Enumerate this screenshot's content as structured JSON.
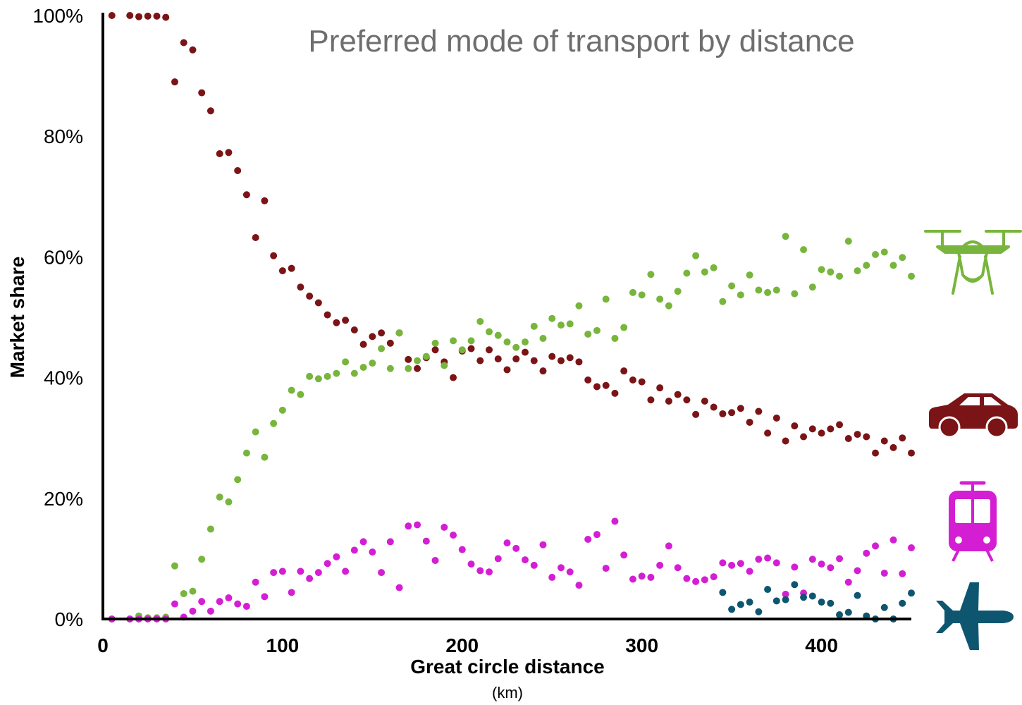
{
  "chart_data": {
    "type": "scatter",
    "title": "Preferred mode of transport by distance",
    "xlabel": "Great circle distance",
    "xlabel_unit": "(km)",
    "ylabel": "Market share",
    "xlim": [
      0,
      450
    ],
    "ylim": [
      0,
      100
    ],
    "x_ticks": [
      0,
      100,
      200,
      300,
      400
    ],
    "x_tick_labels": [
      "0",
      "100",
      "200",
      "300",
      "400"
    ],
    "y_ticks": [
      0,
      20,
      40,
      60,
      80,
      100
    ],
    "y_tick_labels": [
      "0%",
      "20%",
      "40%",
      "60%",
      "80%",
      "100%"
    ],
    "grid": false,
    "legend": "icons at right",
    "series": [
      {
        "icon": "car-icon",
        "color": "#7b1416",
        "points": [
          [
            5,
            100
          ],
          [
            15,
            100
          ],
          [
            20,
            99.8
          ],
          [
            25,
            99.9
          ],
          [
            30,
            99.9
          ],
          [
            35,
            99.7
          ],
          [
            40,
            89
          ],
          [
            45,
            95.5
          ],
          [
            50,
            94.3
          ],
          [
            55,
            87.2
          ],
          [
            60,
            84.2
          ],
          [
            65,
            77.1
          ],
          [
            70,
            77.3
          ],
          [
            75,
            74.3
          ],
          [
            80,
            70.3
          ],
          [
            85,
            63.2
          ],
          [
            90,
            69.3
          ],
          [
            95,
            60.2
          ],
          [
            100,
            57.7
          ],
          [
            105,
            58.1
          ],
          [
            110,
            55
          ],
          [
            115,
            53.5
          ],
          [
            120,
            52.4
          ],
          [
            125,
            50.4
          ],
          [
            130,
            49.1
          ],
          [
            135,
            49.5
          ],
          [
            140,
            47.9
          ],
          [
            145,
            45.5
          ],
          [
            150,
            46.8
          ],
          [
            155,
            47.4
          ],
          [
            160,
            45.7
          ],
          [
            165,
            47.4
          ],
          [
            170,
            43
          ],
          [
            175,
            41.5
          ],
          [
            180,
            43.3
          ],
          [
            185,
            44.6
          ],
          [
            190,
            42.6
          ],
          [
            195,
            40
          ],
          [
            200,
            44.4
          ],
          [
            205,
            44.8
          ],
          [
            210,
            42.8
          ],
          [
            215,
            44.6
          ],
          [
            220,
            43.1
          ],
          [
            225,
            41.3
          ],
          [
            230,
            43.1
          ],
          [
            235,
            44.2
          ],
          [
            240,
            42.8
          ],
          [
            245,
            41.1
          ],
          [
            250,
            43.5
          ],
          [
            255,
            42.8
          ],
          [
            260,
            43.3
          ],
          [
            265,
            42.6
          ],
          [
            270,
            39.6
          ],
          [
            275,
            38.5
          ],
          [
            280,
            38.7
          ],
          [
            285,
            37.4
          ],
          [
            290,
            41.1
          ],
          [
            295,
            39.6
          ],
          [
            300,
            39.3
          ],
          [
            305,
            36.3
          ],
          [
            310,
            38.3
          ],
          [
            315,
            36.1
          ],
          [
            320,
            37.2
          ],
          [
            325,
            36.3
          ],
          [
            330,
            33.9
          ],
          [
            335,
            36.1
          ],
          [
            340,
            35.1
          ],
          [
            345,
            34
          ],
          [
            350,
            34.2
          ],
          [
            355,
            34.9
          ],
          [
            360,
            32.6
          ],
          [
            365,
            34.4
          ],
          [
            370,
            30.8
          ],
          [
            375,
            33.3
          ],
          [
            380,
            29.5
          ],
          [
            385,
            32
          ],
          [
            390,
            30.2
          ],
          [
            395,
            31.5
          ],
          [
            400,
            30.8
          ],
          [
            405,
            31.5
          ],
          [
            410,
            32.2
          ],
          [
            415,
            29.9
          ],
          [
            420,
            30.6
          ],
          [
            425,
            30.2
          ],
          [
            430,
            27.5
          ],
          [
            435,
            29.5
          ],
          [
            440,
            28.4
          ],
          [
            445,
            30
          ],
          [
            450,
            27.5
          ]
        ]
      },
      {
        "icon": "drone-icon",
        "color": "#78b53c",
        "points": [
          [
            5,
            0
          ],
          [
            15,
            0
          ],
          [
            20,
            0.5
          ],
          [
            25,
            0.2
          ],
          [
            30,
            0.2
          ],
          [
            35,
            0.3
          ],
          [
            40,
            8.8
          ],
          [
            45,
            4.2
          ],
          [
            50,
            4.6
          ],
          [
            55,
            9.9
          ],
          [
            60,
            14.9
          ],
          [
            65,
            20.2
          ],
          [
            70,
            19.4
          ],
          [
            75,
            23.1
          ],
          [
            80,
            27.5
          ],
          [
            85,
            31
          ],
          [
            90,
            26.8
          ],
          [
            95,
            32.4
          ],
          [
            100,
            34.6
          ],
          [
            105,
            37.9
          ],
          [
            110,
            37.2
          ],
          [
            115,
            40.2
          ],
          [
            120,
            39.8
          ],
          [
            125,
            40.2
          ],
          [
            130,
            40.7
          ],
          [
            135,
            42.6
          ],
          [
            140,
            40.7
          ],
          [
            145,
            41.7
          ],
          [
            150,
            42.4
          ],
          [
            155,
            44.8
          ],
          [
            160,
            41.5
          ],
          [
            165,
            47.4
          ],
          [
            170,
            41.5
          ],
          [
            175,
            42.8
          ],
          [
            180,
            43.5
          ],
          [
            185,
            45.7
          ],
          [
            190,
            42
          ],
          [
            195,
            46.1
          ],
          [
            200,
            44.6
          ],
          [
            205,
            46.1
          ],
          [
            210,
            49.3
          ],
          [
            215,
            47.6
          ],
          [
            220,
            47
          ],
          [
            225,
            45.9
          ],
          [
            230,
            45
          ],
          [
            235,
            45.9
          ],
          [
            240,
            48.5
          ],
          [
            245,
            46.5
          ],
          [
            250,
            49.8
          ],
          [
            255,
            48.7
          ],
          [
            260,
            48.9
          ],
          [
            265,
            51.9
          ],
          [
            270,
            47.2
          ],
          [
            275,
            47.8
          ],
          [
            280,
            53
          ],
          [
            285,
            46.5
          ],
          [
            290,
            48.3
          ],
          [
            295,
            54.1
          ],
          [
            300,
            53.7
          ],
          [
            305,
            57.1
          ],
          [
            310,
            53
          ],
          [
            315,
            51.9
          ],
          [
            320,
            54.3
          ],
          [
            325,
            57.3
          ],
          [
            330,
            60.2
          ],
          [
            335,
            57.5
          ],
          [
            340,
            58.2
          ],
          [
            345,
            52.6
          ],
          [
            350,
            55.2
          ],
          [
            355,
            53.7
          ],
          [
            360,
            57
          ],
          [
            365,
            54.5
          ],
          [
            370,
            54.1
          ],
          [
            375,
            54.5
          ],
          [
            380,
            63.4
          ],
          [
            385,
            53.9
          ],
          [
            390,
            61.2
          ],
          [
            395,
            55
          ],
          [
            400,
            57.9
          ],
          [
            405,
            57.5
          ],
          [
            410,
            56.8
          ],
          [
            415,
            62.6
          ],
          [
            420,
            57.7
          ],
          [
            425,
            58.6
          ],
          [
            430,
            60.4
          ],
          [
            435,
            60.8
          ],
          [
            440,
            58.6
          ],
          [
            445,
            59.9
          ],
          [
            450,
            56.8
          ]
        ]
      },
      {
        "icon": "tram-icon",
        "color": "#d41ed4",
        "points": [
          [
            5,
            0
          ],
          [
            15,
            0
          ],
          [
            20,
            0
          ],
          [
            25,
            0
          ],
          [
            30,
            0
          ],
          [
            35,
            0
          ],
          [
            40,
            2.5
          ],
          [
            45,
            0.3
          ],
          [
            50,
            1.3
          ],
          [
            55,
            2.9
          ],
          [
            60,
            1.3
          ],
          [
            65,
            2.9
          ],
          [
            70,
            3.5
          ],
          [
            75,
            2.5
          ],
          [
            80,
            2.1
          ],
          [
            85,
            6.1
          ],
          [
            90,
            3.7
          ],
          [
            95,
            7.7
          ],
          [
            100,
            7.9
          ],
          [
            105,
            4.4
          ],
          [
            110,
            7.9
          ],
          [
            115,
            6.7
          ],
          [
            120,
            7.7
          ],
          [
            125,
            9.2
          ],
          [
            130,
            10.3
          ],
          [
            135,
            7.9
          ],
          [
            140,
            11.4
          ],
          [
            145,
            12.8
          ],
          [
            150,
            11.1
          ],
          [
            155,
            7.7
          ],
          [
            160,
            12.8
          ],
          [
            165,
            5.2
          ],
          [
            170,
            15.4
          ],
          [
            175,
            15.6
          ],
          [
            180,
            12.9
          ],
          [
            185,
            9.7
          ],
          [
            190,
            15.2
          ],
          [
            195,
            13.9
          ],
          [
            200,
            11.5
          ],
          [
            205,
            9.1
          ],
          [
            210,
            8
          ],
          [
            215,
            7.8
          ],
          [
            220,
            10
          ],
          [
            225,
            12.6
          ],
          [
            230,
            11.7
          ],
          [
            235,
            9.8
          ],
          [
            240,
            8.9
          ],
          [
            245,
            12.3
          ],
          [
            250,
            6.9
          ],
          [
            255,
            8.5
          ],
          [
            260,
            7.8
          ],
          [
            265,
            5.6
          ],
          [
            270,
            13.2
          ],
          [
            275,
            14
          ],
          [
            280,
            8.4
          ],
          [
            285,
            16.2
          ],
          [
            290,
            10.6
          ],
          [
            295,
            6.6
          ],
          [
            300,
            7.1
          ],
          [
            305,
            6.9
          ],
          [
            310,
            8.9
          ],
          [
            315,
            12.1
          ],
          [
            320,
            8.5
          ],
          [
            325,
            6.7
          ],
          [
            330,
            6.2
          ],
          [
            335,
            6.5
          ],
          [
            340,
            7
          ],
          [
            345,
            9.3
          ],
          [
            350,
            8.9
          ],
          [
            355,
            9.2
          ],
          [
            360,
            7.9
          ],
          [
            365,
            9.9
          ],
          [
            370,
            10.1
          ],
          [
            375,
            9.3
          ],
          [
            380,
            4.1
          ],
          [
            385,
            8.6
          ],
          [
            390,
            4.3
          ],
          [
            395,
            9.9
          ],
          [
            400,
            9.1
          ],
          [
            405,
            8.5
          ],
          [
            410,
            10
          ],
          [
            415,
            6.1
          ],
          [
            420,
            8
          ],
          [
            425,
            10.9
          ],
          [
            430,
            12.1
          ],
          [
            435,
            7.6
          ],
          [
            440,
            13.1
          ],
          [
            445,
            7.5
          ],
          [
            450,
            11.8
          ]
        ]
      },
      {
        "icon": "airplane-icon",
        "color": "#0e5670",
        "points": [
          [
            345,
            4.4
          ],
          [
            350,
            1.6
          ],
          [
            355,
            2.4
          ],
          [
            360,
            2.8
          ],
          [
            365,
            1.2
          ],
          [
            370,
            4.9
          ],
          [
            375,
            3
          ],
          [
            380,
            3.2
          ],
          [
            385,
            5.7
          ],
          [
            390,
            3.6
          ],
          [
            395,
            3.8
          ],
          [
            400,
            2.8
          ],
          [
            405,
            2.6
          ],
          [
            410,
            0.7
          ],
          [
            415,
            1.1
          ],
          [
            420,
            3.9
          ],
          [
            425,
            0.5
          ],
          [
            430,
            0
          ],
          [
            435,
            1.9
          ],
          [
            440,
            0
          ],
          [
            445,
            2.6
          ],
          [
            450,
            4.3
          ]
        ]
      }
    ]
  }
}
